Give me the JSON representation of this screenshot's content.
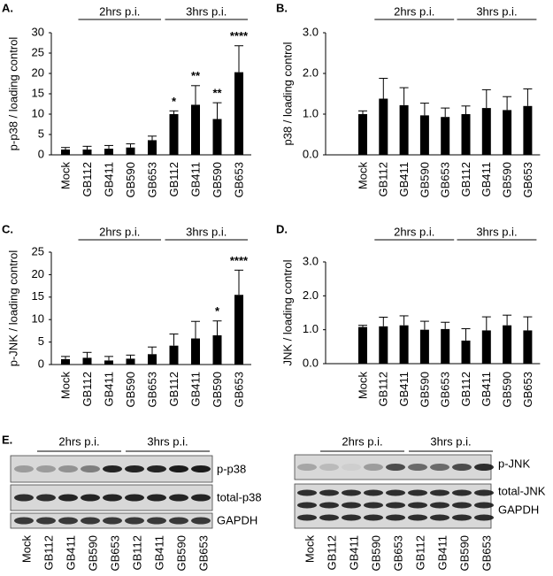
{
  "chart_data": [
    {
      "type": "bar",
      "label": "A.",
      "y_label": "p-p38 / loading control",
      "categories": [
        "Mock",
        "GB112",
        "GB411",
        "GB590",
        "GB653",
        "GB112",
        "GB411",
        "GB590",
        "GB653"
      ],
      "values": [
        1.3,
        1.3,
        1.5,
        1.8,
        3.6,
        10,
        12.3,
        8.8,
        20.3
      ],
      "errors": [
        0.5,
        0.8,
        0.8,
        0.9,
        1.0,
        0.8,
        4.7,
        4,
        6.5
      ],
      "significance": [
        null,
        null,
        null,
        null,
        null,
        "*",
        "**",
        "**",
        "****"
      ],
      "annotations": [
        "2hrs p.i.",
        "3hrs p.i."
      ],
      "color": "#000000",
      "ylim": [
        0,
        30
      ],
      "yticks": [
        0,
        5,
        10,
        15,
        20,
        25,
        30
      ]
    },
    {
      "type": "bar",
      "label": "B.",
      "y_label": "p38 / loading control",
      "categories": [
        "Mock",
        "GB112",
        "GB411",
        "GB590",
        "GB653",
        "GB112",
        "GB411",
        "GB590",
        "GB653"
      ],
      "values": [
        1.0,
        1.38,
        1.22,
        0.97,
        0.93,
        1.0,
        1.15,
        1.1,
        1.2
      ],
      "errors": [
        0.08,
        0.5,
        0.43,
        0.3,
        0.22,
        0.2,
        0.45,
        0.33,
        0.42
      ],
      "annotations": [
        "2hrs p.i.",
        "3hrs p.i."
      ],
      "color": "#000000",
      "ylim": [
        0,
        3
      ],
      "yticks": [
        {
          "value": 0,
          "label": "0.0"
        },
        {
          "value": 1,
          "label": "1.0"
        },
        {
          "value": 2,
          "label": "2.0"
        },
        {
          "value": 3,
          "label": "3.0"
        }
      ]
    },
    {
      "type": "bar",
      "label": "C.",
      "y_label": "p-JNK / loading control",
      "categories": [
        "Mock",
        "GB112",
        "GB411",
        "GB590",
        "GB653",
        "GB112",
        "GB411",
        "GB590",
        "GB653"
      ],
      "values": [
        1.2,
        1.5,
        0.9,
        1.3,
        2.3,
        4.2,
        5.8,
        6.5,
        15.5
      ],
      "errors": [
        0.6,
        1.2,
        0.9,
        0.8,
        1.6,
        2.6,
        3.8,
        3.2,
        5.5
      ],
      "significance": [
        null,
        null,
        null,
        null,
        null,
        null,
        null,
        "*",
        "****"
      ],
      "annotations": [
        "2hrs p.i.",
        "3hrs p.i."
      ],
      "color": "#000000",
      "ylim": [
        0,
        25
      ],
      "yticks": [
        0,
        5,
        10,
        15,
        20,
        25
      ]
    },
    {
      "type": "bar",
      "label": "D.",
      "y_label": "JNK / loading control",
      "categories": [
        "Mock",
        "GB112",
        "GB411",
        "GB590",
        "GB653",
        "GB112",
        "GB411",
        "GB590",
        "GB653"
      ],
      "values": [
        1.08,
        1.1,
        1.13,
        1.0,
        1.02,
        0.68,
        0.98,
        1.13,
        0.98
      ],
      "errors": [
        0.05,
        0.27,
        0.28,
        0.25,
        0.2,
        0.35,
        0.4,
        0.3,
        0.4
      ],
      "annotations": [
        "2hrs p.i.",
        "3hrs p.i."
      ],
      "color": "#000000",
      "ylim": [
        0,
        3
      ],
      "yticks": [
        {
          "value": 0,
          "label": "0.0"
        },
        {
          "value": 1,
          "label": "1.0"
        },
        {
          "value": 2,
          "label": "2.0"
        },
        {
          "value": 3,
          "label": "3.0"
        }
      ]
    }
  ],
  "blots": {
    "label": "E.",
    "panels": [
      {
        "groups": [
          "2hrs p.i.",
          "3hrs p.i."
        ],
        "rows": [
          "p-p38",
          "total-p38",
          "GAPDH"
        ],
        "lanes": [
          "Mock",
          "GB112",
          "GB411",
          "GB590",
          "GB653",
          "GB112",
          "GB411",
          "GB590",
          "GB653"
        ]
      },
      {
        "groups": [
          "2hrs p.i.",
          "3hrs p.i."
        ],
        "rows": [
          "p-JNK",
          "total-JNK",
          "GAPDH"
        ],
        "lanes": [
          "Mock",
          "GB112",
          "GB411",
          "GB590",
          "GB653",
          "GB112",
          "GB411",
          "GB590",
          "GB653"
        ]
      }
    ]
  }
}
